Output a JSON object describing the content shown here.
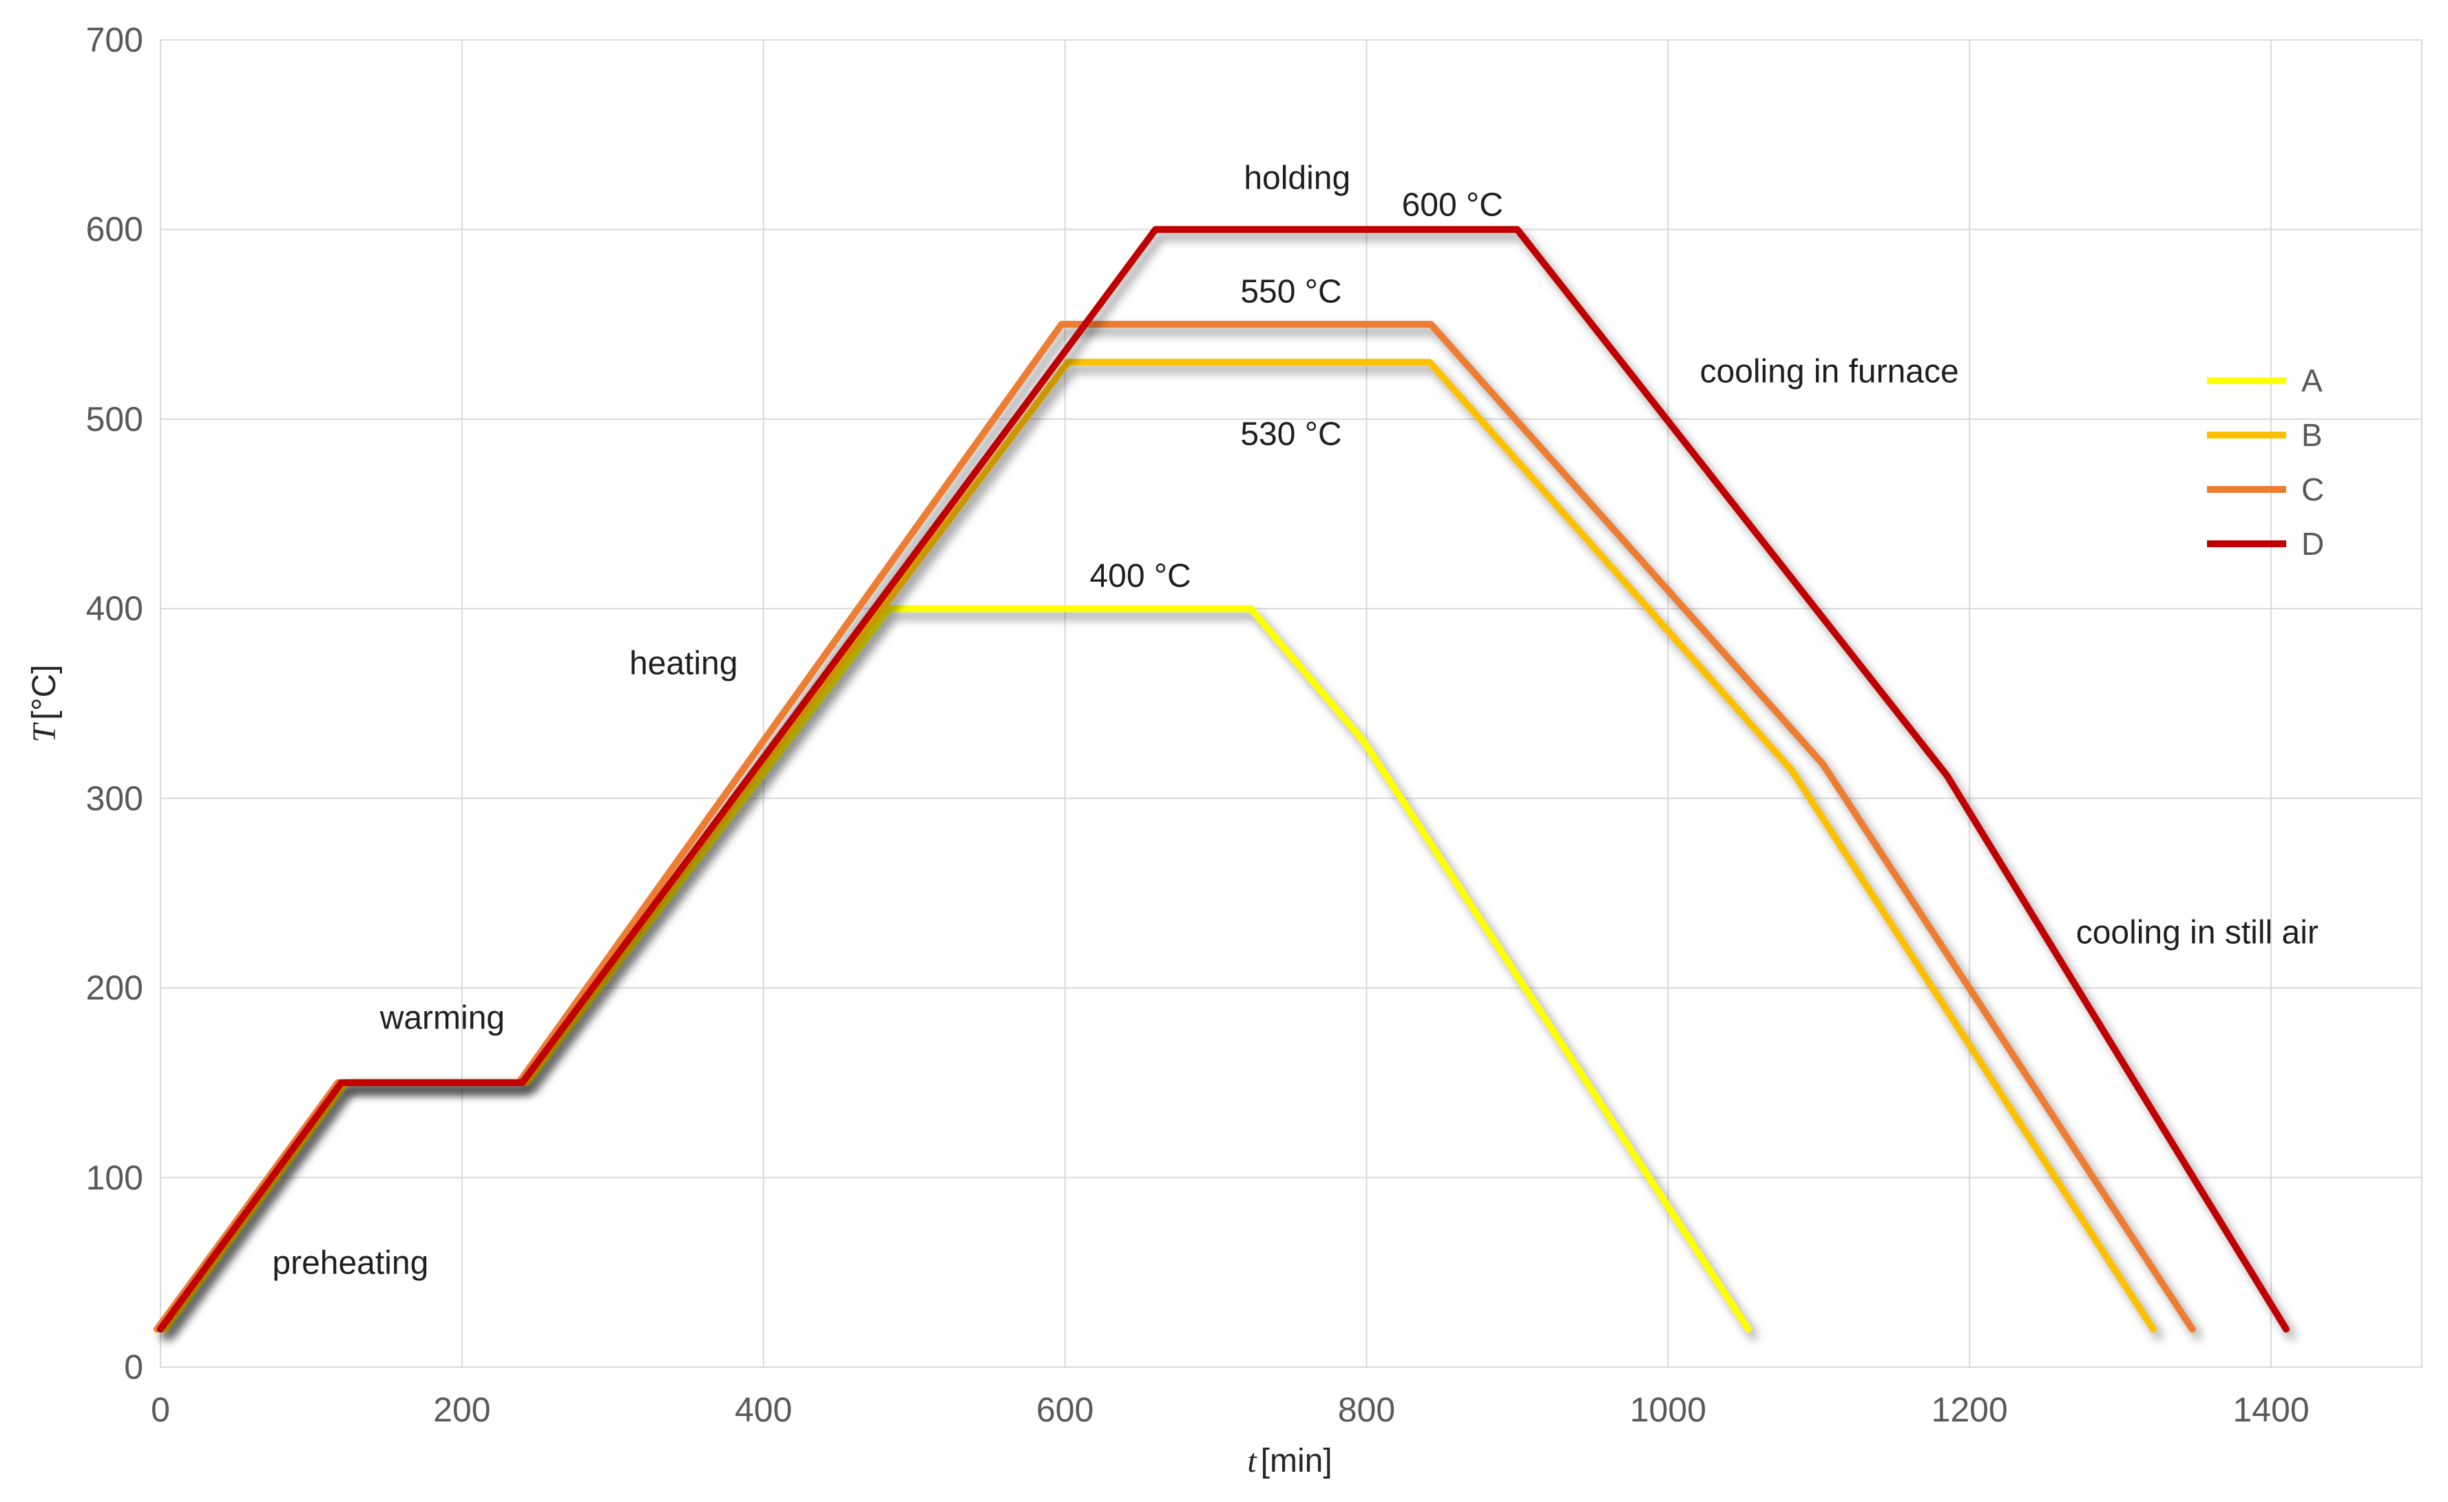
{
  "chart_data": {
    "type": "line",
    "title": "",
    "xlabel": "t [min]",
    "ylabel": "T [°C]",
    "xlim": [
      0,
      1500
    ],
    "ylim": [
      0,
      700
    ],
    "x_ticks": [
      0,
      200,
      400,
      600,
      800,
      1000,
      1200,
      1400
    ],
    "y_ticks": [
      0,
      100,
      200,
      300,
      400,
      500,
      600,
      700
    ],
    "grid": true,
    "legend_position": "right",
    "grid_color": "#D9D9D9",
    "series": [
      {
        "name": "A",
        "color": "#FFFF00",
        "hold_temp_c": 400,
        "points": [
          [
            0,
            20
          ],
          [
            120,
            150
          ],
          [
            240,
            150
          ],
          [
            480,
            400
          ],
          [
            720,
            400
          ],
          [
            795,
            330
          ],
          [
            1050,
            20
          ]
        ]
      },
      {
        "name": "B",
        "color": "#FFC000",
        "hold_temp_c": 530,
        "points": [
          [
            0,
            20
          ],
          [
            120,
            150
          ],
          [
            240,
            150
          ],
          [
            600,
            530
          ],
          [
            840,
            530
          ],
          [
            1080,
            315
          ],
          [
            1320,
            20
          ]
        ]
      },
      {
        "name": "C",
        "color": "#ED7D31",
        "hold_temp_c": 550,
        "points": [
          [
            0,
            20
          ],
          [
            120,
            150
          ],
          [
            240,
            150
          ],
          [
            600,
            550
          ],
          [
            845,
            550
          ],
          [
            1105,
            318
          ],
          [
            1350,
            20
          ]
        ]
      },
      {
        "name": "D",
        "color": "#C00000",
        "hold_temp_c": 600,
        "points": [
          [
            0,
            20
          ],
          [
            120,
            150
          ],
          [
            240,
            150
          ],
          [
            660,
            600
          ],
          [
            900,
            600
          ],
          [
            1185,
            312
          ],
          [
            1410,
            20
          ]
        ]
      }
    ],
    "annotations": [
      {
        "text": "preheating",
        "t": 126,
        "T": 55
      },
      {
        "text": "warming",
        "t": 187,
        "T": 184
      },
      {
        "text": "heating",
        "t": 347,
        "T": 371
      },
      {
        "text": "holding",
        "t": 754,
        "T": 627
      },
      {
        "text": "600 °C",
        "t": 857,
        "T": 613
      },
      {
        "text": "550 °C",
        "t": 750,
        "T": 567
      },
      {
        "text": "530 °C",
        "t": 750,
        "T": 492
      },
      {
        "text": "400 °C",
        "t": 650,
        "T": 417
      },
      {
        "text": "cooling in furnace",
        "t": 1107,
        "T": 525
      },
      {
        "text": "cooling in still air",
        "t": 1351,
        "T": 229
      }
    ]
  },
  "axes": {
    "x_title_var": "t",
    "x_title_unit": "[min]",
    "y_title_var": "T",
    "y_title_unit": "[°C]"
  },
  "legend": {
    "items": [
      {
        "label": "A",
        "color": "#FFFF00"
      },
      {
        "label": "B",
        "color": "#FFC000"
      },
      {
        "label": "C",
        "color": "#ED7D31"
      },
      {
        "label": "D",
        "color": "#C00000"
      }
    ]
  }
}
